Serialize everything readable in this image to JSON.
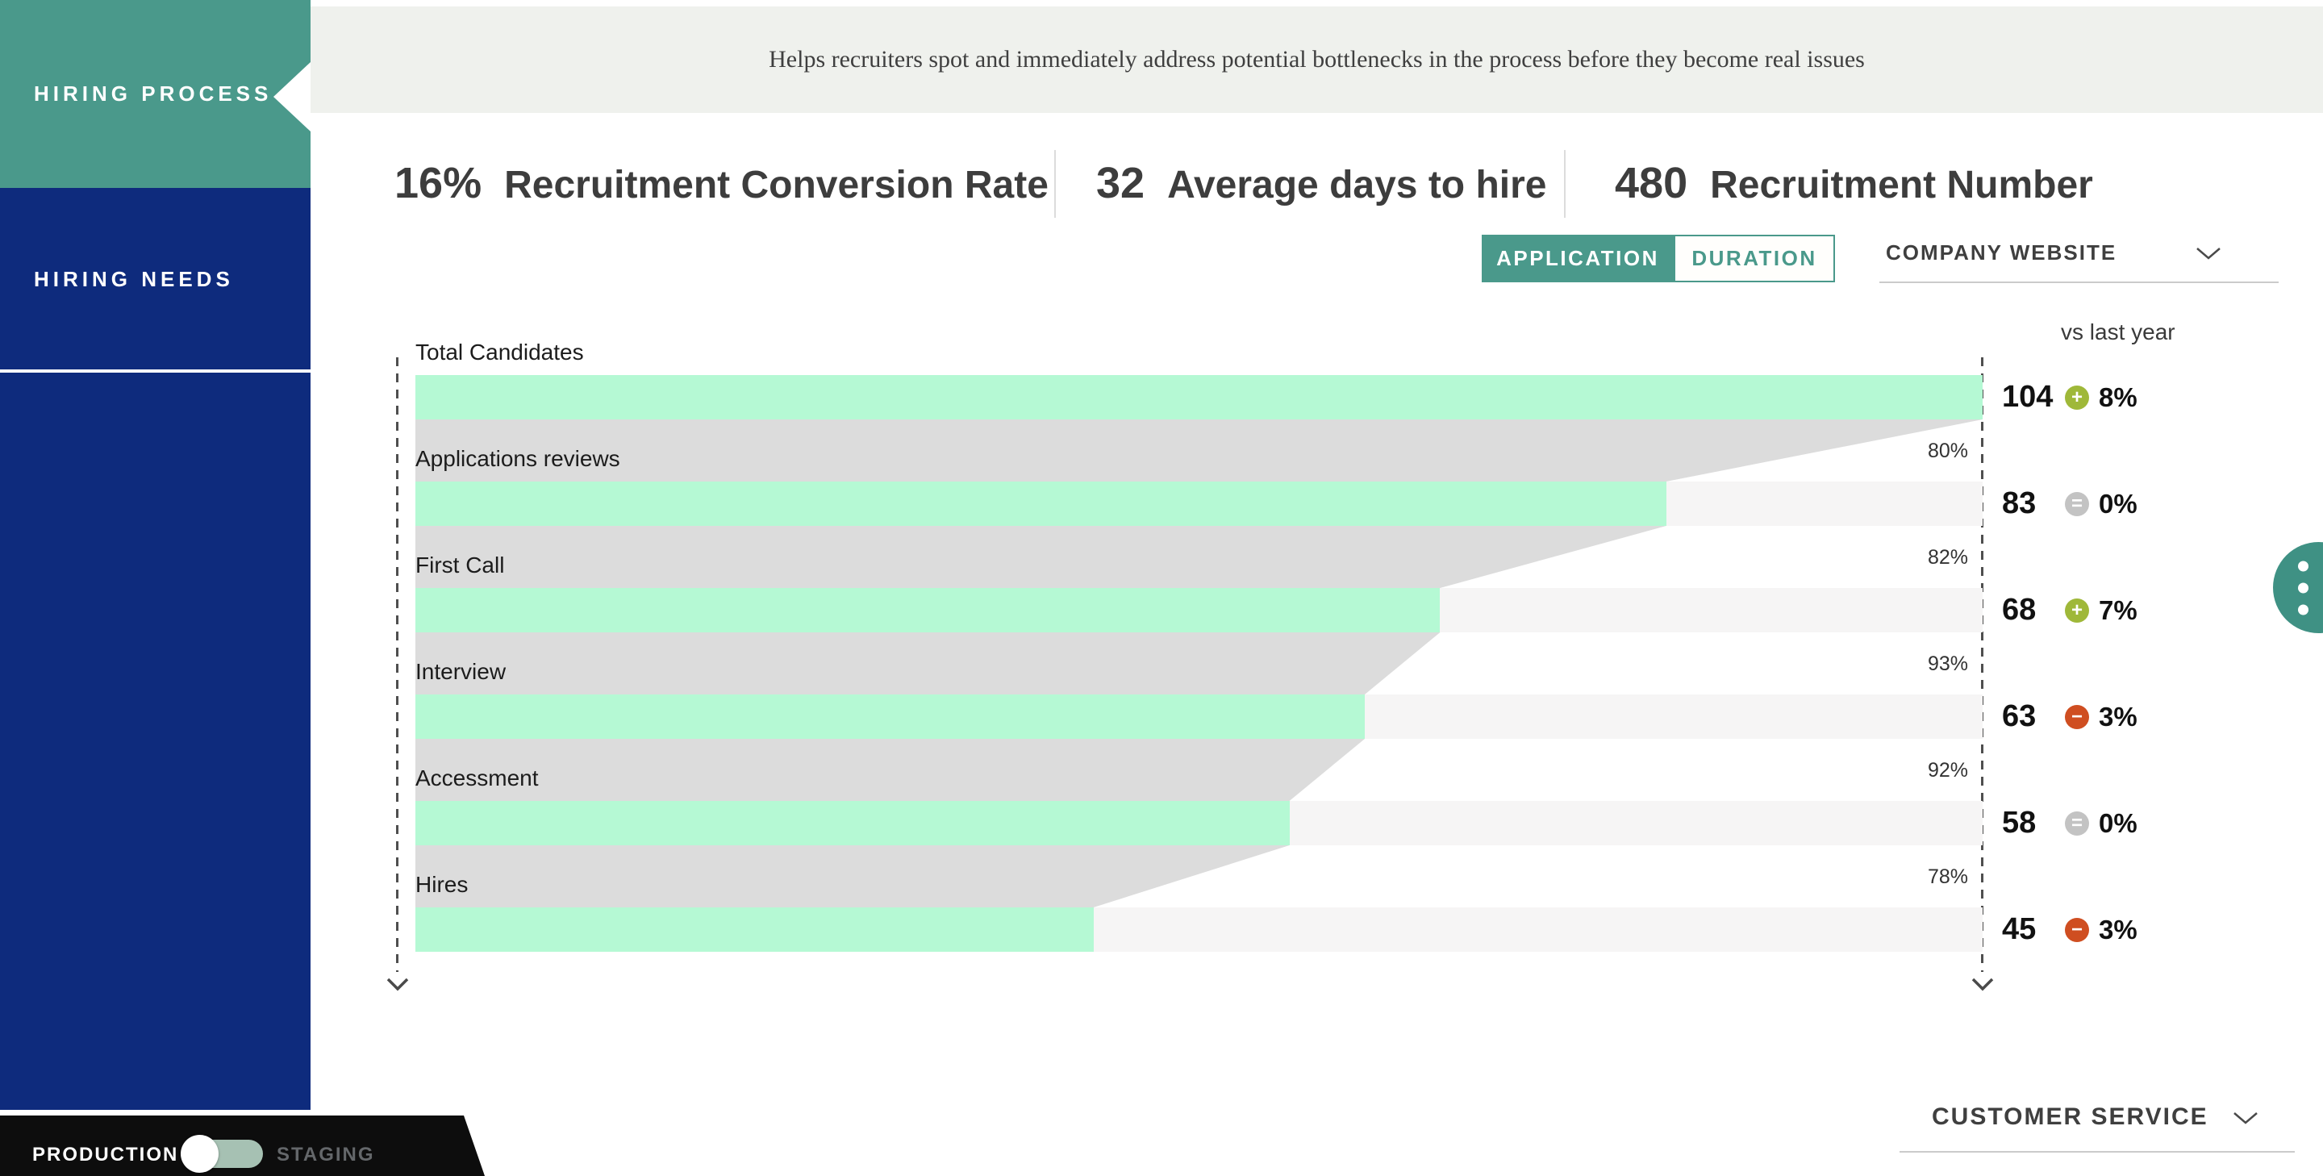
{
  "header": {
    "description": "Helps recruiters spot and immediately address potential bottlenecks in the process before they become real issues"
  },
  "sidebar": {
    "items": [
      {
        "label": "HIRING PROCESS",
        "active": true
      },
      {
        "label": "HIRING NEEDS",
        "active": false
      }
    ]
  },
  "stats": {
    "items": [
      {
        "value": "16%",
        "label": "Recruitment Conversion Rate"
      },
      {
        "value": "32",
        "label": "Average days to hire"
      },
      {
        "value": "480",
        "label": "Recruitment Number"
      }
    ]
  },
  "view_toggle": {
    "options": [
      {
        "label": "APPLICATION",
        "active": true
      },
      {
        "label": "DURATION",
        "active": false
      }
    ]
  },
  "source_dropdown": {
    "label": "COMPANY WEBSITE"
  },
  "comparison_column_label": "vs last year",
  "chart_data": {
    "type": "funnel",
    "title": "Hiring process funnel",
    "max_value": 104,
    "stages": [
      {
        "label": "Total Candidates",
        "value": 104,
        "change_dir": "up",
        "change_pct": "8%"
      },
      {
        "label": "Applications reviews",
        "value": 83,
        "change_dir": "same",
        "change_pct": "0%",
        "conversion_from_prev": "80%"
      },
      {
        "label": "First Call",
        "value": 68,
        "change_dir": "up",
        "change_pct": "7%",
        "conversion_from_prev": "82%"
      },
      {
        "label": "Interview",
        "value": 63,
        "change_dir": "down",
        "change_pct": "3%",
        "conversion_from_prev": "93%"
      },
      {
        "label": "Accessment",
        "value": 58,
        "change_dir": "same",
        "change_pct": "0%",
        "conversion_from_prev": "92%"
      },
      {
        "label": "Hires",
        "value": 45,
        "change_dir": "down",
        "change_pct": "3%",
        "conversion_from_prev": "78%"
      }
    ],
    "badge": {
      "glyphs": {
        "up": "+",
        "same": "=",
        "down": "−"
      },
      "colors": {
        "up": "#9fb839",
        "same": "#c3c3c3",
        "down": "#cf4e21"
      }
    },
    "bar_color": "#b5f9d4",
    "connector_color": "#dcdcdc",
    "remainder_color": "#f6f5f5"
  },
  "footer": {
    "env_toggle": {
      "left_label": "PRODUCTION",
      "right_label": "STAGING",
      "state": "production"
    },
    "service_dropdown": {
      "label": "CUSTOMER SERVICE"
    }
  },
  "colors": {
    "accent_teal": "#4a998b",
    "sidebar_navy": "#0e2b7d",
    "header_band": "#eff1ed"
  }
}
